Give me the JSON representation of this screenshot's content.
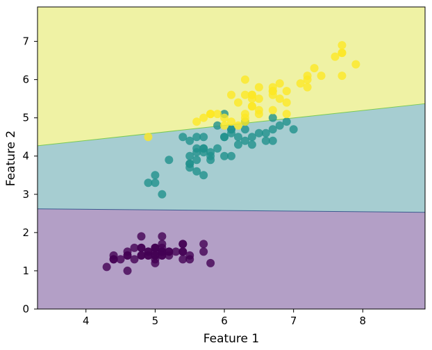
{
  "chart_data": {
    "type": "scatter",
    "title": "",
    "xlabel": "Feature 1",
    "ylabel": "Feature 2",
    "xlim": [
      3.3,
      8.9
    ],
    "ylim": [
      0,
      7.9
    ],
    "x_ticks": [
      4,
      5,
      6,
      7,
      8
    ],
    "y_ticks": [
      0,
      1,
      2,
      3,
      4,
      5,
      6,
      7
    ],
    "grid": false,
    "legend": "none",
    "decision_regions": [
      {
        "class": 0,
        "color": "#b39fc6",
        "boundary_above": {
          "x": [
            3.3,
            8.9
          ],
          "y": [
            2.62,
            2.53
          ]
        }
      },
      {
        "class": 1,
        "color": "#a6cdd1",
        "boundary_above": {
          "x": [
            3.3,
            8.9
          ],
          "y": [
            4.27,
            5.37
          ]
        }
      },
      {
        "class": 2,
        "color": "#eff2a4"
      }
    ],
    "boundary_colors": [
      "#3b5a8f",
      "#7ac952"
    ],
    "series": [
      {
        "color": "#440154",
        "x": [
          4.3,
          4.4,
          4.4,
          4.4,
          4.5,
          4.6,
          4.6,
          4.6,
          4.6,
          4.7,
          4.7,
          4.8,
          4.8,
          4.8,
          4.8,
          4.8,
          4.9,
          4.9,
          4.9,
          4.9,
          5.0,
          5.0,
          5.0,
          5.0,
          5.0,
          5.0,
          5.0,
          5.0,
          5.1,
          5.1,
          5.1,
          5.1,
          5.1,
          5.1,
          5.1,
          5.1,
          5.2,
          5.2,
          5.2,
          5.3,
          5.4,
          5.4,
          5.4,
          5.4,
          5.4,
          5.5,
          5.5,
          5.7,
          5.7,
          5.8
        ],
        "y": [
          1.1,
          1.3,
          1.4,
          1.3,
          1.3,
          1.4,
          1.5,
          1.4,
          1.0,
          1.3,
          1.6,
          1.6,
          1.4,
          1.9,
          1.6,
          1.4,
          1.5,
          1.4,
          1.5,
          1.4,
          1.4,
          1.6,
          1.2,
          1.5,
          1.3,
          1.6,
          1.6,
          1.4,
          1.4,
          1.4,
          1.5,
          1.5,
          1.7,
          1.5,
          1.9,
          1.6,
          1.5,
          1.4,
          1.5,
          1.5,
          1.7,
          1.5,
          1.7,
          1.3,
          1.5,
          1.3,
          1.4,
          1.7,
          1.5,
          1.2
        ]
      },
      {
        "color": "#21918c",
        "x": [
          4.9,
          5.0,
          5.0,
          5.1,
          5.2,
          5.4,
          5.5,
          5.5,
          5.5,
          5.5,
          5.5,
          5.6,
          5.6,
          5.6,
          5.6,
          5.6,
          5.7,
          5.7,
          5.7,
          5.7,
          5.7,
          5.8,
          5.8,
          5.8,
          5.9,
          5.9,
          6.0,
          6.0,
          6.0,
          6.0,
          6.1,
          6.1,
          6.1,
          6.1,
          6.2,
          6.2,
          6.3,
          6.3,
          6.3,
          6.4,
          6.4,
          6.5,
          6.6,
          6.6,
          6.7,
          6.7,
          6.7,
          6.8,
          6.9,
          7.0
        ],
        "y": [
          3.3,
          3.5,
          3.3,
          3.0,
          3.9,
          4.5,
          4.0,
          3.8,
          3.7,
          3.8,
          4.4,
          4.5,
          3.6,
          4.2,
          4.1,
          3.9,
          4.5,
          3.5,
          4.2,
          4.2,
          4.1,
          4.1,
          4.0,
          3.9,
          4.8,
          4.2,
          4.5,
          5.1,
          4.0,
          4.5,
          4.7,
          4.0,
          4.7,
          4.6,
          4.3,
          4.5,
          4.7,
          4.9,
          4.4,
          4.5,
          4.3,
          4.6,
          4.6,
          4.4,
          4.7,
          4.4,
          5.0,
          4.8,
          4.9,
          4.7
        ]
      },
      {
        "color": "#fde725",
        "x": [
          4.9,
          5.6,
          5.7,
          5.8,
          5.8,
          5.8,
          5.9,
          6.0,
          6.0,
          6.1,
          6.1,
          6.2,
          6.2,
          6.3,
          6.3,
          6.3,
          6.3,
          6.3,
          6.4,
          6.4,
          6.4,
          6.4,
          6.4,
          6.5,
          6.5,
          6.5,
          6.5,
          6.7,
          6.7,
          6.7,
          6.7,
          6.7,
          6.8,
          6.8,
          6.9,
          6.9,
          6.9,
          7.1,
          7.2,
          7.2,
          7.2,
          7.3,
          7.4,
          7.6,
          7.7,
          7.7,
          7.7,
          7.7,
          7.9
        ],
        "y": [
          4.5,
          4.9,
          5.0,
          5.1,
          5.1,
          5.1,
          5.1,
          4.8,
          5.0,
          5.6,
          4.9,
          4.8,
          5.4,
          6.0,
          5.6,
          5.1,
          5.0,
          4.9,
          5.3,
          5.5,
          5.6,
          5.3,
          5.6,
          5.8,
          5.5,
          5.1,
          5.2,
          5.7,
          5.8,
          5.7,
          5.6,
          5.2,
          5.9,
          5.5,
          5.7,
          5.1,
          5.4,
          5.9,
          6.0,
          6.1,
          5.8,
          6.3,
          6.1,
          6.6,
          6.7,
          6.9,
          6.7,
          6.1,
          6.4
        ]
      }
    ]
  }
}
